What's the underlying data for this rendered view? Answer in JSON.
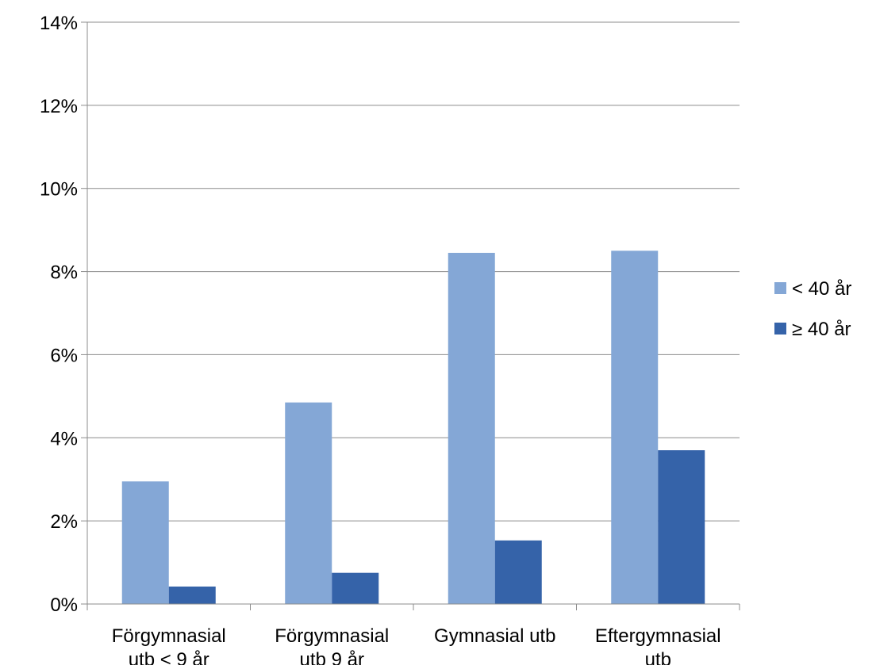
{
  "chart_data": {
    "type": "bar",
    "title": "",
    "xlabel": "",
    "ylabel": "",
    "categories": [
      [
        "Förgymnasial",
        "utb < 9 år"
      ],
      [
        "Förgymnasial",
        "utb 9 år"
      ],
      [
        "Gymnasial utb"
      ],
      [
        "Eftergymnasial",
        "utb"
      ]
    ],
    "series": [
      {
        "name": "< 40 år",
        "color": "#84A7D6",
        "values": [
          2.95,
          4.85,
          8.45,
          8.5
        ]
      },
      {
        "name": "≥ 40 år",
        "color": "#3563A9",
        "values": [
          0.42,
          0.75,
          1.53,
          3.7
        ]
      }
    ],
    "ylim": [
      0,
      14
    ],
    "yticks": [
      0,
      2,
      4,
      6,
      8,
      10,
      12,
      14
    ],
    "ytick_labels": [
      "0%",
      "2%",
      "4%",
      "6%",
      "8%",
      "10%",
      "12%",
      "14%"
    ],
    "grid": true,
    "legend_position": "right"
  }
}
